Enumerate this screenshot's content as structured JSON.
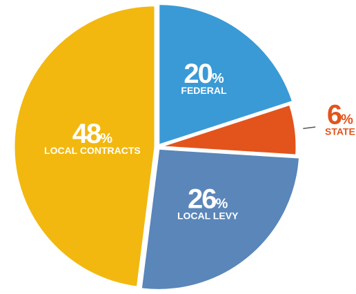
{
  "chart_data": {
    "type": "pie",
    "categories": [
      "FEDERAL",
      "STATE",
      "LOCAL LEVY",
      "LOCAL CONTRACTS"
    ],
    "values": [
      20,
      6,
      26,
      48
    ],
    "unit": "%",
    "colors": [
      "#3a9ad6",
      "#e2541c",
      "#5a86b9",
      "#f2b80f"
    ]
  }
}
